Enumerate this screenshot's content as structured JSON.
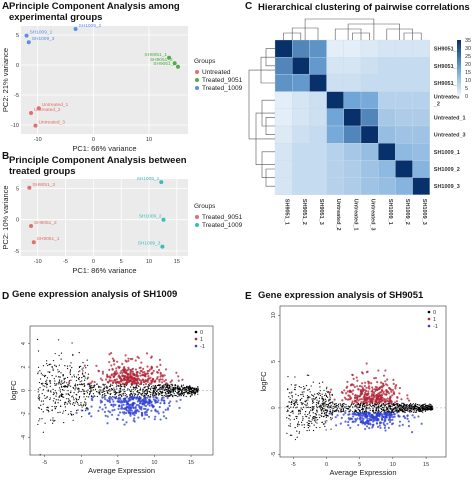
{
  "chart_data": [
    {
      "panel": "A",
      "type": "scatter",
      "title": "Principle Component Analysis among experimental groups",
      "title_lines": [
        "Principle Component Analysis among",
        "experimental groups"
      ],
      "xlabel": "PC1: 66% variance",
      "ylabel": "PC2: 21% variance",
      "xlim": [
        -13,
        17
      ],
      "ylim": [
        -11.5,
        6.5
      ],
      "xticks": [
        -10,
        0,
        10
      ],
      "yticks": [
        -10,
        -5,
        0,
        5
      ],
      "grid": true,
      "legend_title": "Groups",
      "legend_position": "right",
      "series": [
        {
          "name": "Untreated",
          "color": "#e0706b",
          "points": [
            {
              "label": "Untreated_1",
              "x": -9.8,
              "y": -7.2
            },
            {
              "label": "Untreated_2",
              "x": -11.2,
              "y": -8.0
            },
            {
              "label": "Untreated_3",
              "x": -10.4,
              "y": -10.1
            }
          ]
        },
        {
          "name": "Treated_9051",
          "color": "#4ead47",
          "points": [
            {
              "label": "SH9051_1",
              "x": 13.6,
              "y": 1.2
            },
            {
              "label": "SH9051_2",
              "x": 14.6,
              "y": 0.3
            },
            {
              "label": "SH9051_3",
              "x": 15.2,
              "y": -0.3
            }
          ]
        },
        {
          "name": "Treated_1009",
          "color": "#5b8ee8",
          "points": [
            {
              "label": "SH1009_2",
              "x": -3.2,
              "y": 6.0
            },
            {
              "label": "SH1009_1",
              "x": -12.0,
              "y": 4.9
            },
            {
              "label": "SH1009_3",
              "x": -11.6,
              "y": 3.8
            }
          ]
        }
      ]
    },
    {
      "panel": "B",
      "type": "scatter",
      "title": "Principle Component Analysis between treated groups",
      "title_lines": [
        "Principle Component Analysis between",
        "treated groups"
      ],
      "xlabel": "PC1: 86% variance",
      "ylabel": "PC2: 10% variance",
      "xlim": [
        -13,
        17
      ],
      "ylim": [
        -5.8,
        6.5
      ],
      "xticks": [
        -10,
        -5,
        0,
        5,
        10,
        15
      ],
      "yticks": [
        -5,
        0,
        5
      ],
      "grid": true,
      "legend_title": "Groups",
      "legend_position": "right",
      "series": [
        {
          "name": "Treated_9051",
          "color": "#e0706b",
          "points": [
            {
              "label": "SH9051_3",
              "x": -11.5,
              "y": 5.1
            },
            {
              "label": "SH9051_2",
              "x": -11.2,
              "y": -1.0
            },
            {
              "label": "SH9051_1",
              "x": -10.7,
              "y": -3.6
            }
          ]
        },
        {
          "name": "Treated_1009",
          "color": "#3cbcb8",
          "points": [
            {
              "label": "SH1009_1",
              "x": 12.2,
              "y": 6.0
            },
            {
              "label": "SH1009_2",
              "x": 12.6,
              "y": 0.0
            },
            {
              "label": "SH1009_3",
              "x": 12.4,
              "y": -4.3
            }
          ]
        }
      ]
    },
    {
      "panel": "C",
      "type": "heatmap",
      "title": "Hierarchical clustering of pairwise correlations",
      "row_labels": [
        "SH9051_1",
        "SH9051_2",
        "SH9051_3",
        "Untreated_2",
        "Untreated_1",
        "Untreated_3",
        "SH1009_1",
        "SH1009_2",
        "SH1009_3"
      ],
      "row_label_lines": [
        [
          "SH9051_1"
        ],
        [
          "SH9051_2"
        ],
        [
          "SH9051_3"
        ],
        [
          "Untreated",
          "_2"
        ],
        [
          "Untreated_1"
        ],
        [
          "Untreated_3"
        ],
        [
          "SH1009_1"
        ],
        [
          "SH1009_2"
        ],
        [
          "SH1009_3"
        ]
      ],
      "col_labels": [
        "SH9051_1",
        "SH9051_2",
        "SH9051_3",
        "Untreated_2",
        "Untreated_1",
        "Untreated_3",
        "SH1009_1",
        "SH1009_2",
        "SH1009_3"
      ],
      "values": [
        [
          35,
          22,
          20,
          2,
          2,
          3,
          4,
          4,
          4
        ],
        [
          22,
          35,
          19,
          4,
          4,
          5,
          6,
          6,
          6
        ],
        [
          20,
          19,
          35,
          5,
          5,
          6,
          6,
          6,
          6
        ],
        [
          2,
          4,
          5,
          35,
          17,
          16,
          8,
          8,
          8
        ],
        [
          2,
          4,
          5,
          17,
          35,
          22,
          10,
          9,
          9
        ],
        [
          3,
          5,
          6,
          16,
          22,
          35,
          12,
          11,
          11
        ],
        [
          4,
          6,
          6,
          8,
          10,
          12,
          35,
          13,
          12
        ],
        [
          4,
          6,
          6,
          8,
          9,
          11,
          13,
          35,
          14
        ],
        [
          4,
          6,
          6,
          8,
          9,
          11,
          12,
          14,
          35
        ]
      ],
      "colorbar_ticks": [
        0,
        5,
        10,
        15,
        20,
        25,
        30,
        35
      ],
      "colorbar_range": [
        0,
        35
      ],
      "color_low": "#f4f8fc",
      "color_high": "#08306b"
    },
    {
      "panel": "D",
      "type": "scatter",
      "title": "Gene expression analysis of SH1009",
      "xlabel": "Average Expression",
      "ylabel": "logFC",
      "xlim": [
        -7,
        18
      ],
      "ylim": [
        -5.5,
        5.5
      ],
      "xticks": [
        -5,
        0,
        5,
        10,
        15
      ],
      "yticks": [
        -4,
        -2,
        0,
        2,
        4
      ],
      "legend_position": "top-right",
      "series": [
        {
          "name": "0",
          "color": "#000000"
        },
        {
          "name": "1",
          "color": "#b22234"
        },
        {
          "name": "-1",
          "color": "#2e3fd1"
        }
      ]
    },
    {
      "panel": "E",
      "type": "scatter",
      "title": "Gene expression analysis of SH9051",
      "xlabel": "Average Expression",
      "ylabel": "logFC",
      "xlim": [
        -7,
        18
      ],
      "ylim": [
        -5.3,
        11
      ],
      "xticks": [
        -5,
        0,
        5,
        10,
        15
      ],
      "yticks": [
        -5,
        0,
        5,
        10
      ],
      "legend_position": "top-right",
      "series": [
        {
          "name": "0",
          "color": "#000000"
        },
        {
          "name": "1",
          "color": "#b22234"
        },
        {
          "name": "-1",
          "color": "#2e3fd1"
        }
      ]
    }
  ]
}
